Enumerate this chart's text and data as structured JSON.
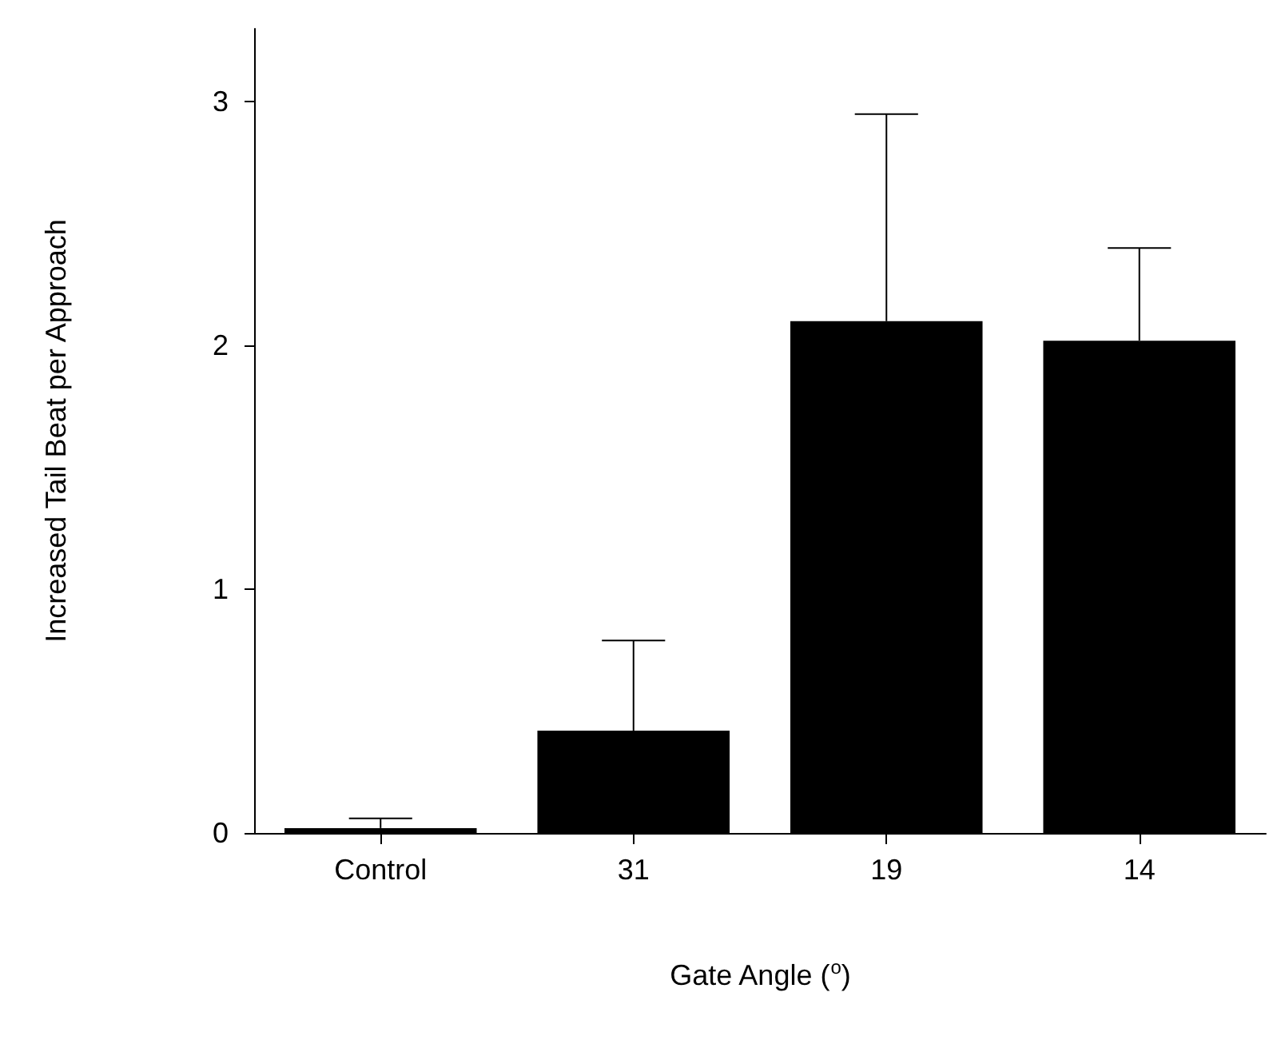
{
  "chart_data": {
    "type": "bar",
    "xlabel": "Gate Angle ($^{o}$)",
    "ylabel": "Increased Tail Beat per Approach",
    "categories": [
      "Control",
      "31",
      "19",
      "14"
    ],
    "values": [
      0.02,
      0.42,
      2.1,
      2.02
    ],
    "errors": [
      [
        0.02,
        0.06
      ],
      [
        0.42,
        0.79
      ],
      [
        2.1,
        2.95
      ],
      [
        2.02,
        2.4
      ]
    ],
    "color": "#000000",
    "ylim": [
      0,
      3.3
    ],
    "yticks": [
      0,
      1,
      2,
      3
    ]
  }
}
